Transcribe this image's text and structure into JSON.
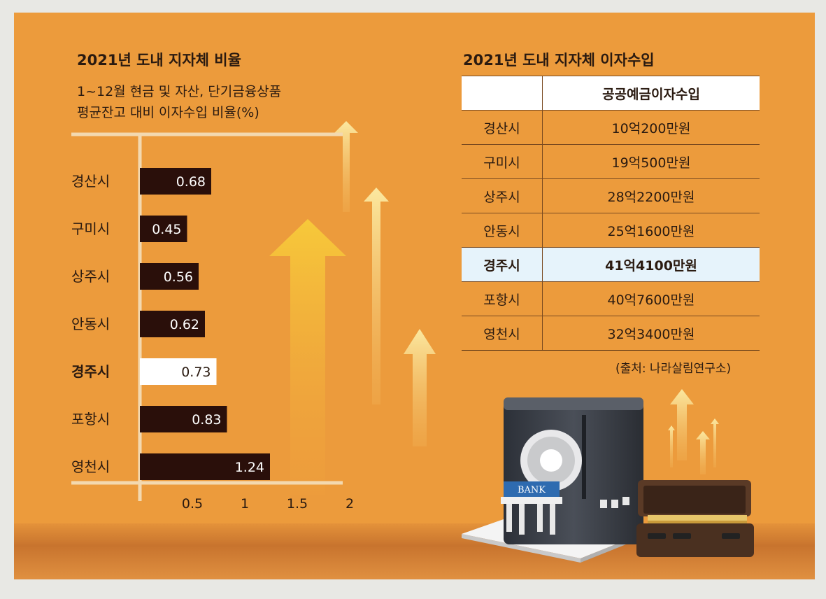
{
  "left": {
    "title": "2021년 도내 지자체 비율",
    "subtitle_line1": "1~12월 현금 및 자산, 단기금융상품",
    "subtitle_line2": "평균잔고 대비 이자수입 비율(%)"
  },
  "chart_data": {
    "type": "bar",
    "orientation": "horizontal",
    "categories": [
      "경산시",
      "구미시",
      "상주시",
      "안동시",
      "경주시",
      "포항시",
      "영천시"
    ],
    "values": [
      0.68,
      0.45,
      0.56,
      0.62,
      0.73,
      0.83,
      1.24
    ],
    "value_labels": [
      "0.68",
      "0.45",
      "0.56",
      "0.62",
      "0.73",
      "0.83",
      "1.24"
    ],
    "highlight": "경주시",
    "xlim": [
      0,
      2
    ],
    "xticks": [
      0.5,
      1,
      1.5,
      2
    ],
    "xtick_labels": [
      "0.5",
      "1",
      "1.5",
      "2"
    ],
    "colors": {
      "bar": "#2a0f0a",
      "highlight_bar": "#ffffff",
      "bar_text": "#ffffff",
      "highlight_text": "#2a1a10"
    }
  },
  "right": {
    "title": "2021년 도내 지자체 이자수입",
    "header": "공공예금이자수입",
    "rows": [
      {
        "city": "경산시",
        "value": "10억200만원"
      },
      {
        "city": "구미시",
        "value": "19억500만원"
      },
      {
        "city": "상주시",
        "value": "28억2200만원"
      },
      {
        "city": "안동시",
        "value": "25억1600만원"
      },
      {
        "city": "경주시",
        "value": "41억4100만원"
      },
      {
        "city": "포항시",
        "value": "40억7600만원"
      },
      {
        "city": "영천시",
        "value": "32억3400만원"
      }
    ],
    "source": "(출처: 나라살림연구소)"
  },
  "illustration": {
    "bank_sign": "BANK"
  },
  "colors": {
    "background": "#ec9b3c",
    "arrow": "#f3c23a",
    "table_highlight": "#e6f3fb"
  }
}
